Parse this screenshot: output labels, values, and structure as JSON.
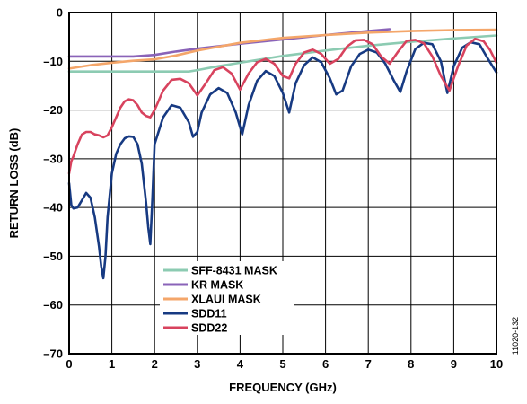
{
  "chart_data": {
    "type": "line",
    "title": "",
    "xlabel": "FREQUENCY (GHz)",
    "ylabel": "RETURN LOSS (dB)",
    "xlim": [
      0,
      10
    ],
    "ylim": [
      -70,
      0
    ],
    "x_ticks": [
      "0",
      "1",
      "2",
      "3",
      "4",
      "5",
      "6",
      "7",
      "8",
      "9",
      "10"
    ],
    "y_ticks": [
      "0",
      "–10",
      "–20",
      "–30",
      "–40",
      "–50",
      "–60",
      "–70"
    ],
    "grid": true,
    "legend_position": "bottom-left",
    "figure_id": "11020-132",
    "series": [
      {
        "name": "SFF-8431 MASK",
        "color": "#8ccbb2",
        "x": [
          0,
          1,
          2,
          2.8,
          3.0,
          3.5,
          4,
          5,
          6,
          7,
          8,
          9,
          10
        ],
        "y": [
          -12.1,
          -12.1,
          -12.1,
          -12.1,
          -11.8,
          -11.0,
          -10.3,
          -8.9,
          -7.8,
          -6.8,
          -6.0,
          -5.3,
          -4.7
        ]
      },
      {
        "name": "KR MASK",
        "color": "#8a63b8",
        "x": [
          0,
          1,
          1.5,
          2,
          2.5,
          3,
          4,
          5,
          6,
          7,
          7.5
        ],
        "y": [
          -9.0,
          -9.0,
          -9.0,
          -8.7,
          -8.0,
          -7.4,
          -6.4,
          -5.5,
          -4.6,
          -3.8,
          -3.4
        ]
      },
      {
        "name": "XLAUI MASK",
        "color": "#f4a66a",
        "x": [
          0,
          0.5,
          1,
          1.5,
          2,
          2.5,
          3,
          3.5,
          4,
          5,
          6,
          7,
          8,
          9,
          10
        ],
        "y": [
          -11.5,
          -10.8,
          -10.3,
          -9.9,
          -9.6,
          -8.8,
          -7.8,
          -7.0,
          -6.2,
          -5.2,
          -4.6,
          -4.1,
          -3.8,
          -3.6,
          -3.5
        ]
      },
      {
        "name": "SDD11",
        "color": "#173a82",
        "x": [
          0,
          0.05,
          0.1,
          0.2,
          0.3,
          0.4,
          0.5,
          0.6,
          0.7,
          0.75,
          0.8,
          0.85,
          0.9,
          1.0,
          1.1,
          1.2,
          1.3,
          1.4,
          1.5,
          1.6,
          1.7,
          1.8,
          1.85,
          1.9,
          1.95,
          2.0,
          2.2,
          2.4,
          2.6,
          2.8,
          2.9,
          3.0,
          3.1,
          3.3,
          3.5,
          3.7,
          3.9,
          4.05,
          4.2,
          4.4,
          4.6,
          4.8,
          5.0,
          5.15,
          5.3,
          5.5,
          5.7,
          5.9,
          6.1,
          6.25,
          6.4,
          6.6,
          6.8,
          7.0,
          7.2,
          7.4,
          7.6,
          7.75,
          7.9,
          8.1,
          8.3,
          8.5,
          8.7,
          8.85,
          9.0,
          9.2,
          9.4,
          9.6,
          9.8,
          10.0
        ],
        "y": [
          -35,
          -39.5,
          -40.2,
          -40,
          -38.5,
          -37,
          -38,
          -42,
          -48,
          -52,
          -54.5,
          -50,
          -42,
          -33,
          -29,
          -27,
          -25.8,
          -25.4,
          -25.5,
          -27,
          -31,
          -39,
          -44,
          -47.5,
          -38,
          -27,
          -21.5,
          -19,
          -19.5,
          -22.5,
          -25.5,
          -24.5,
          -20.5,
          -16.8,
          -15.5,
          -16.5,
          -20.5,
          -25,
          -19,
          -14,
          -12,
          -13,
          -16.5,
          -20.5,
          -14.5,
          -10.8,
          -9.2,
          -10.2,
          -13.5,
          -16.8,
          -16,
          -11,
          -8.5,
          -7.6,
          -8.2,
          -10.5,
          -14,
          -16.3,
          -12,
          -7.5,
          -6.2,
          -6.5,
          -10,
          -16.5,
          -11,
          -7.2,
          -6.1,
          -6.5,
          -9.5,
          -12.3
        ]
      },
      {
        "name": "SDD22",
        "color": "#d8435e",
        "x": [
          0,
          0.05,
          0.1,
          0.2,
          0.3,
          0.4,
          0.5,
          0.6,
          0.7,
          0.8,
          0.9,
          1.0,
          1.1,
          1.2,
          1.3,
          1.4,
          1.5,
          1.6,
          1.7,
          1.8,
          1.9,
          2.0,
          2.2,
          2.4,
          2.6,
          2.8,
          3.0,
          3.2,
          3.4,
          3.6,
          3.8,
          4.0,
          4.2,
          4.4,
          4.6,
          4.8,
          5.0,
          5.15,
          5.3,
          5.5,
          5.7,
          5.9,
          6.1,
          6.3,
          6.5,
          6.7,
          6.9,
          7.1,
          7.3,
          7.5,
          7.7,
          7.9,
          8.1,
          8.3,
          8.5,
          8.7,
          8.9,
          9.1,
          9.3,
          9.5,
          9.7,
          9.85,
          10.0
        ],
        "y": [
          -33,
          -30.5,
          -29.5,
          -27,
          -25,
          -24.5,
          -24.5,
          -25,
          -25.2,
          -25.6,
          -25.2,
          -23.5,
          -21.5,
          -19.5,
          -18.2,
          -17.8,
          -18,
          -19,
          -20.5,
          -21.2,
          -21.5,
          -20,
          -16,
          -13.8,
          -13.6,
          -14.5,
          -17,
          -14.5,
          -11.8,
          -11.2,
          -12.5,
          -15.8,
          -12.5,
          -10.2,
          -9.5,
          -10.5,
          -13,
          -13.5,
          -10.5,
          -8.2,
          -7.6,
          -8.5,
          -10.5,
          -9.5,
          -7,
          -5.7,
          -5.6,
          -6.5,
          -9,
          -10.5,
          -8,
          -5.8,
          -5.6,
          -6.3,
          -9,
          -13,
          -16,
          -11,
          -6.8,
          -5.4,
          -5.9,
          -7.7,
          -10.3
        ]
      }
    ]
  }
}
